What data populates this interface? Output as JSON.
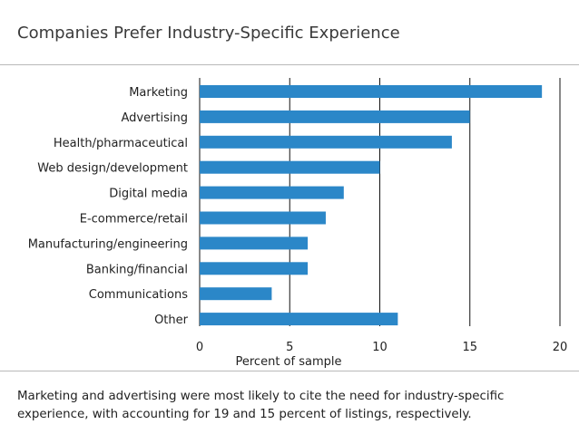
{
  "page": {
    "title": "Companies Prefer Industry-Specific Experience",
    "caption": "Marketing and advertising were most likely to cite the need for industry-specific experience, with accounting for 19 and 15 percent of listings, respectively."
  },
  "colors": {
    "bar": "#2b87c8",
    "gridline": "#111111",
    "text": "#222222"
  },
  "chart_data": {
    "type": "bar",
    "orientation": "horizontal",
    "title": "Companies Prefer Industry-Specific Experience",
    "xlabel": "Percent of sample",
    "ylabel": "",
    "categories": [
      "Marketing",
      "Advertising",
      "Health/pharmaceutical",
      "Web design/development",
      "Digital media",
      "E-commerce/retail",
      "Manufacturing/engineering",
      "Banking/financial",
      "Communications",
      "Other"
    ],
    "values": [
      19,
      15,
      14,
      10,
      8,
      7,
      6,
      6,
      4,
      11
    ],
    "xlim": [
      0,
      20
    ],
    "xticks": [
      "0",
      "5",
      "10",
      "15",
      "20"
    ],
    "grid": "vertical",
    "legend": "none"
  }
}
